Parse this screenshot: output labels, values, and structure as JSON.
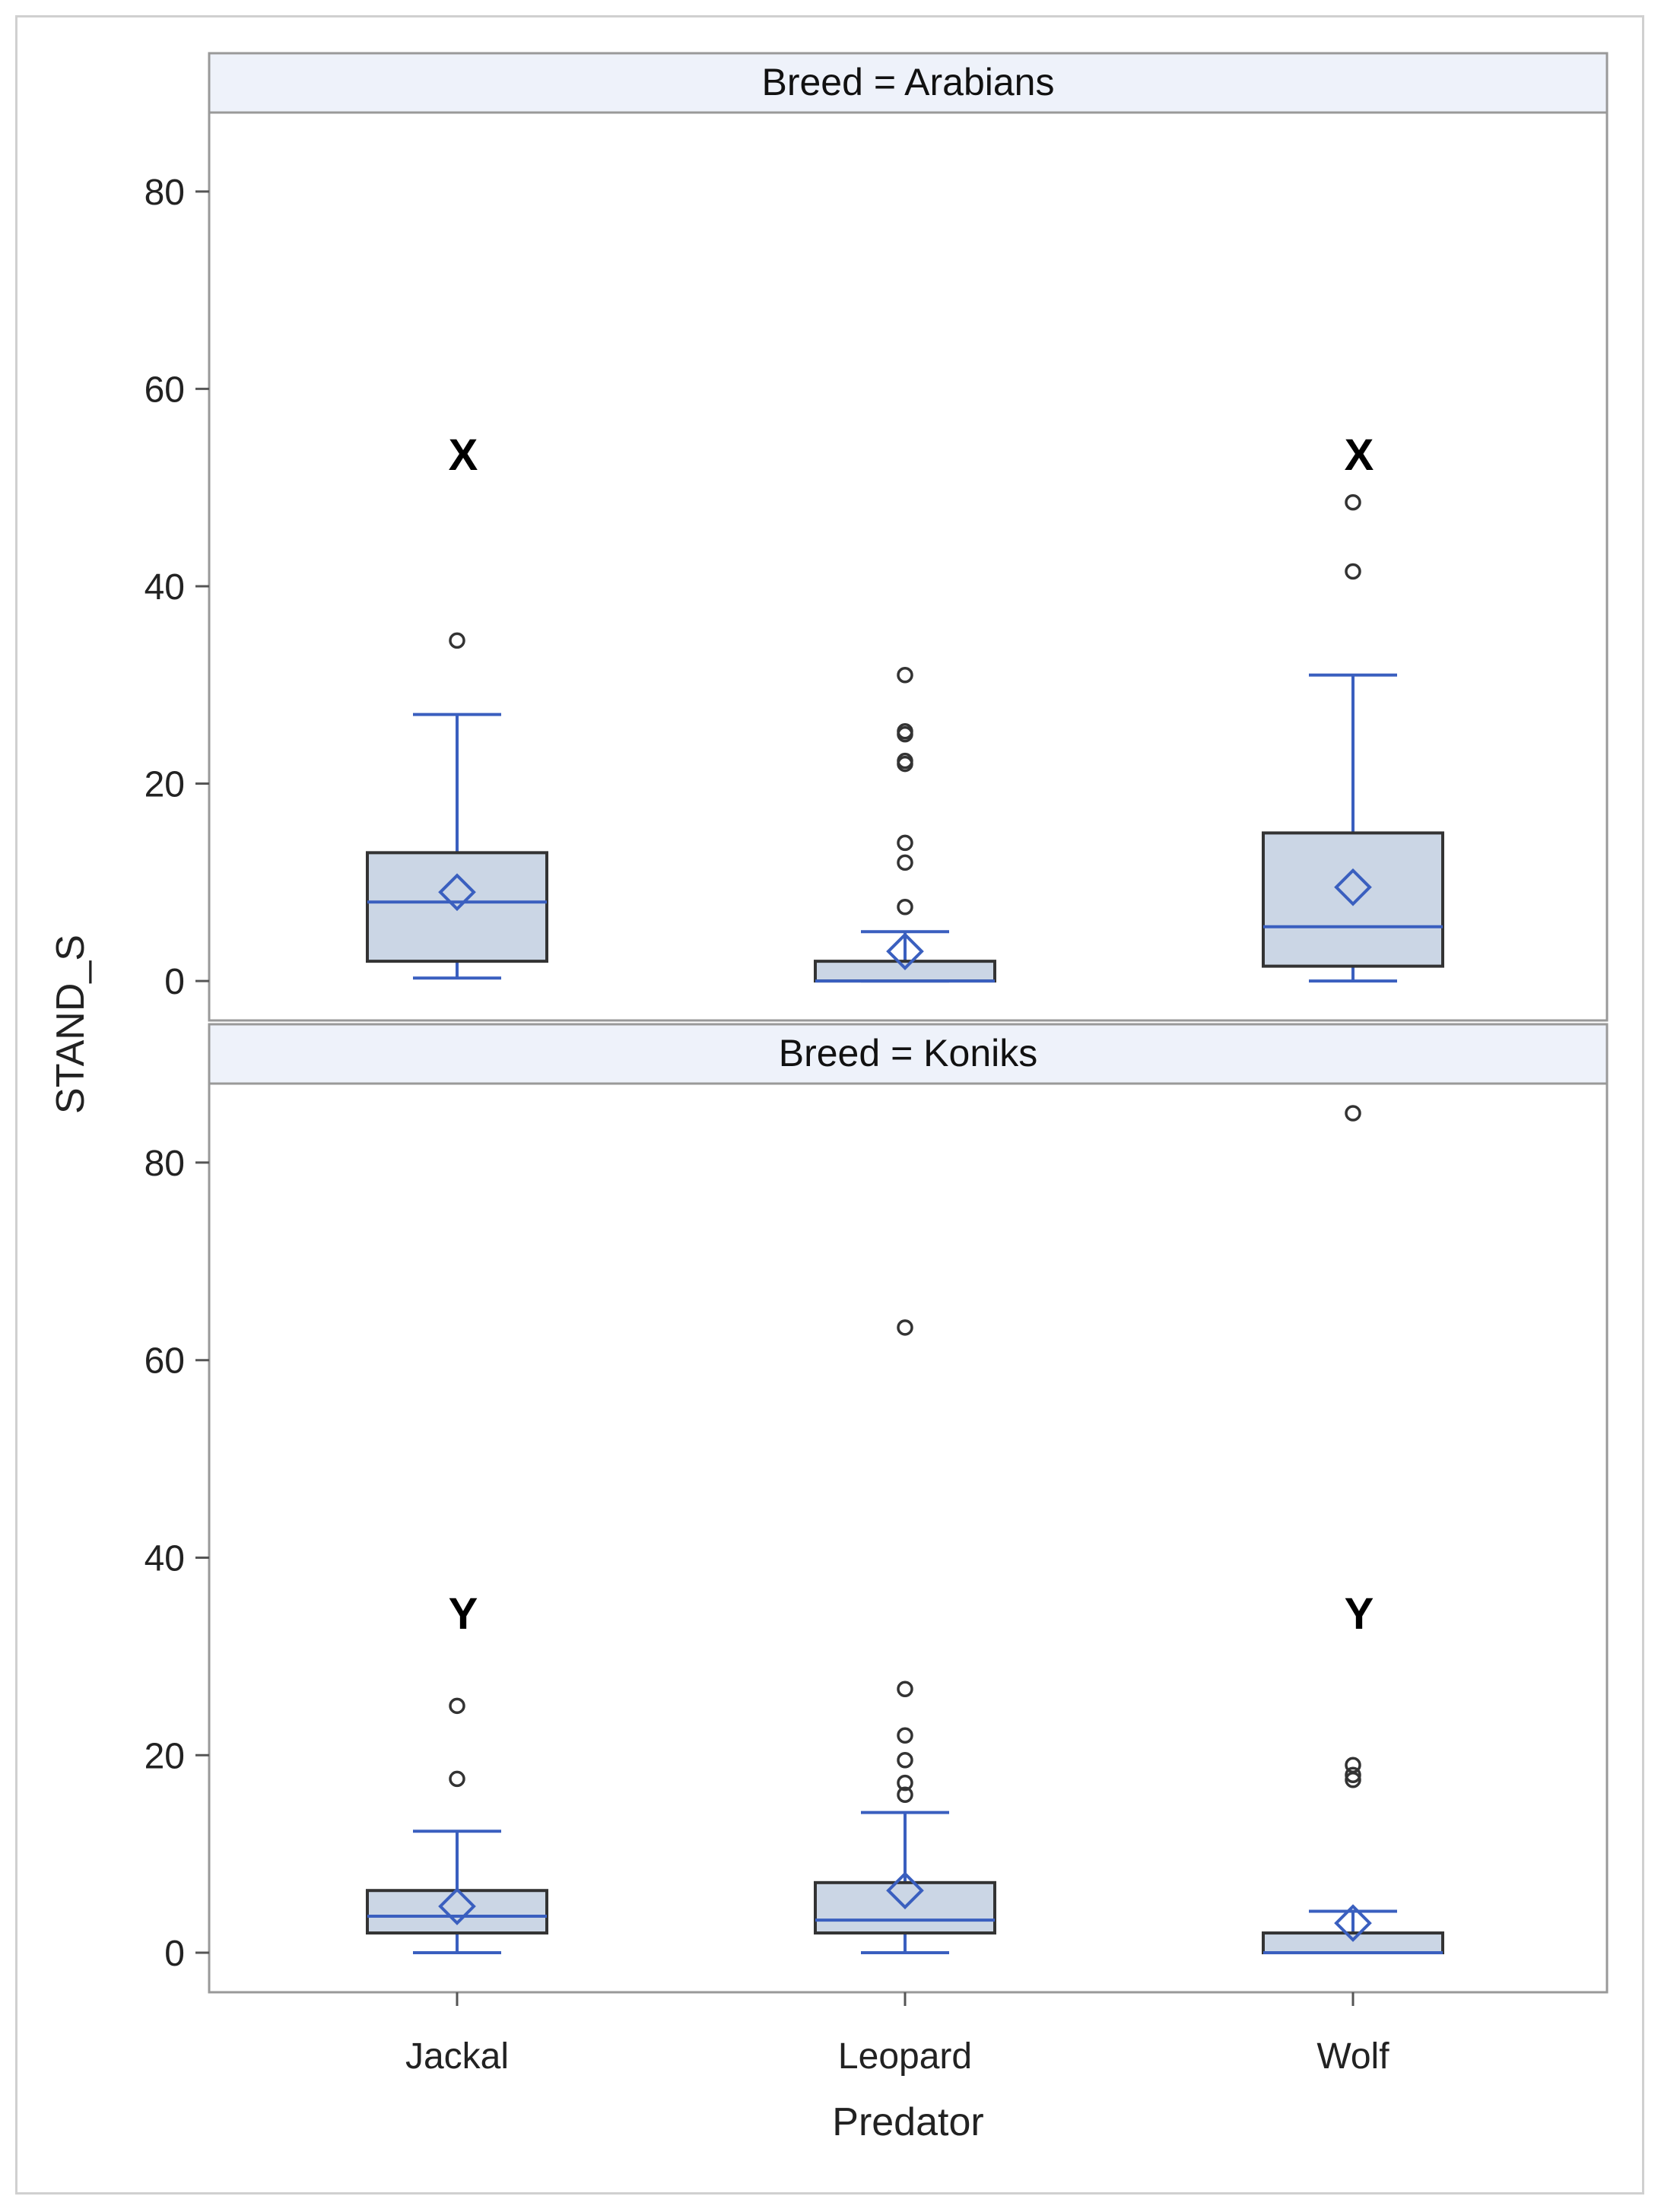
{
  "chart_data": {
    "type": "box",
    "xlabel": "Predator",
    "ylabel": "STAND_S",
    "categories": [
      "Jackal",
      "Leopard",
      "Wolf"
    ],
    "ylim": [
      -4,
      88
    ],
    "yticks": [
      0,
      20,
      40,
      60,
      80
    ],
    "grid": false,
    "legend": "none",
    "colors": {
      "box_fill": "#cbd6e5",
      "box_edge": "#333333",
      "whisker": "#3a5fbf",
      "mean_marker": "#3a5fbf",
      "outlier": "#333333",
      "strip_bg": "#eef2fa",
      "frame": "#999999"
    },
    "panels": [
      {
        "strip_label": "Breed = Arabians",
        "boxes": [
          {
            "category": "Jackal",
            "q1": 2,
            "median": 8,
            "q3": 13,
            "mean": 9,
            "whisker_low": 0.3,
            "whisker_high": 27,
            "outliers": [
              34.5
            ],
            "annotation": "X"
          },
          {
            "category": "Leopard",
            "q1": 0,
            "median": 0,
            "q3": 2,
            "mean": 3,
            "whisker_low": 0,
            "whisker_high": 5,
            "outliers": [
              7.5,
              12,
              14,
              22,
              22.3,
              25,
              25.3,
              31
            ],
            "annotation": ""
          },
          {
            "category": "Wolf",
            "q1": 1.5,
            "median": 5.5,
            "q3": 15,
            "mean": 9.5,
            "whisker_low": 0,
            "whisker_high": 31,
            "outliers": [
              41.5,
              48.5
            ],
            "annotation": "X"
          }
        ]
      },
      {
        "strip_label": "Breed = Koniks",
        "boxes": [
          {
            "category": "Jackal",
            "q1": 2,
            "median": 3.7,
            "q3": 6.3,
            "mean": 4.7,
            "whisker_low": 0,
            "whisker_high": 12.3,
            "outliers": [
              17.6,
              25
            ],
            "annotation": "Y"
          },
          {
            "category": "Leopard",
            "q1": 2,
            "median": 3.3,
            "q3": 7.1,
            "mean": 6.3,
            "whisker_low": 0,
            "whisker_high": 14.2,
            "outliers": [
              16,
              17.2,
              19.5,
              22,
              26.7,
              63.3
            ],
            "annotation": ""
          },
          {
            "category": "Wolf",
            "q1": 0,
            "median": 0,
            "q3": 2,
            "mean": 3,
            "whisker_low": 0,
            "whisker_high": 4.2,
            "outliers": [
              17.5,
              18,
              19,
              85
            ],
            "annotation": "Y"
          }
        ]
      }
    ]
  }
}
